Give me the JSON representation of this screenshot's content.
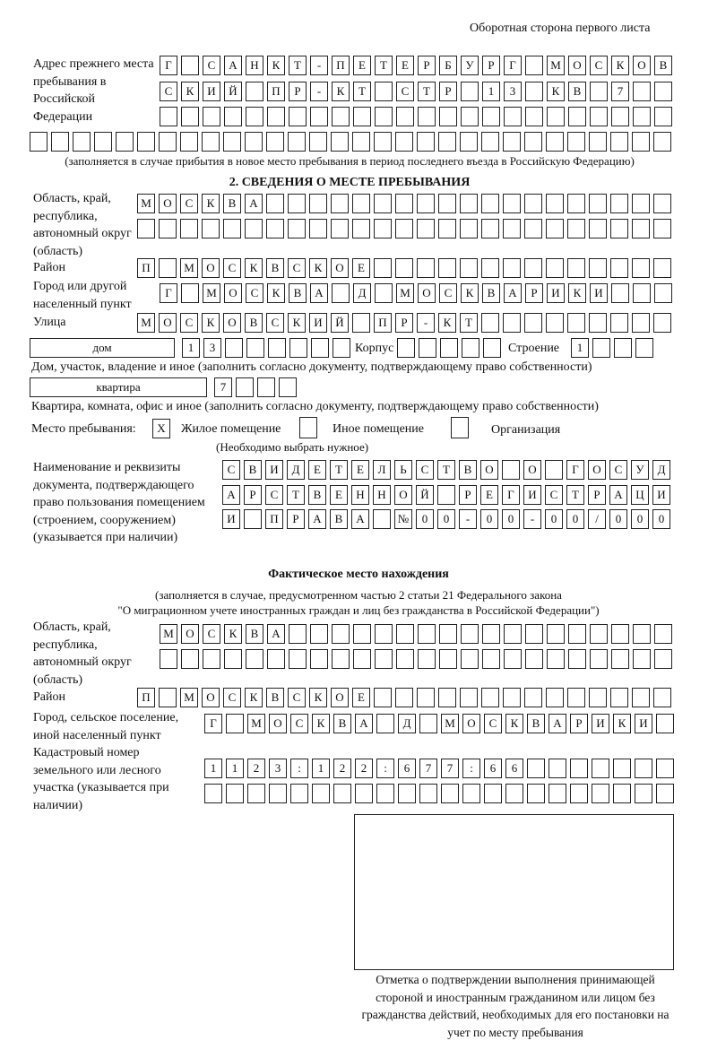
{
  "header": "Оборотная сторона первого листа",
  "prev_address": {
    "label": "Адрес прежнего места пребывания в Российской Федерации",
    "rows": [
      "Г СанКТ-ПЕТЕРБУРГ МОСКОВ",
      "СКИЙ ПР-КТ СТР 13 КВ 7  ",
      "",
      "",
      ""
    ],
    "note": "(заполняется в случае прибытия в новое место пребывания в период последнего въезда в Российскую Федерацию)"
  },
  "section2": {
    "title": "2. СВЕДЕНИЯ О МЕСТЕ ПРЕБЫВАНИЯ",
    "region_label": "Область, край, республика, автономный округ (область)",
    "region_rows": [
      "МОСКВА",
      ""
    ],
    "district_label": "Район",
    "district": "П МОСКВСКОЕ",
    "city_label": "Город или другой населенный пункт",
    "city": "Г МОСКВА Д МОСКВАРИКИ",
    "street_label": "Улица",
    "street": "МОСКОВСКИЙ ПР-КТ",
    "house_type": "дом",
    "house_number": "13",
    "korpus_label": "Корпус",
    "korpus": "",
    "building_label": "Строение",
    "building": "1",
    "house_note": "Дом, участок, владение и иное (заполнить согласно документу, подтверждающему право собственности)",
    "apt_type": "квартира",
    "apt_number": "7",
    "apt_note": "Квартира, комната, офис и иное (заполнить согласно документу, подтверждающему право собственности)",
    "place_label": "Место пребывания:",
    "place_options": [
      {
        "mark": "X",
        "label": "Жилое помещение"
      },
      {
        "mark": "",
        "label": "Иное помещение"
      },
      {
        "mark": "",
        "label": "Организация"
      }
    ],
    "place_note": "(Необходимо выбрать нужное)",
    "doc_label": "Наименование и реквизиты документа, подтверждающего право пользования помещением (строением, сооружением) (указывается при наличии)",
    "doc_rows": [
      "СВИДЕТЕЛЬСТВО О ГОСУД",
      "АРСТВЕННОЙ РЕГИСТРАЦИ",
      "И ПРАВА №00-00-00/000"
    ]
  },
  "actual": {
    "title": "Фактическое место нахождения",
    "note1": "(заполняется в случае, предусмотренном частью 2 статьи 21 Федерального закона",
    "note2": "\"О миграционном учете иностранных граждан и лиц без гражданства в Российской Федерации\")",
    "region_label": "Область, край, республика, автономный округ (область)",
    "region_rows": [
      "МОСКВА",
      ""
    ],
    "district_label": "Район",
    "district": "П МОСКВСКОЕ",
    "city_label": "Город, сельское поселение, иной населенный пункт",
    "city": "Г МОСКВА Д МОСКВАРИКИ",
    "cadastre_label": "Кадастровый номер земельного или лесного участка (указывается при наличии)",
    "cadastre_rows": [
      "1123:122:677:66",
      ""
    ]
  },
  "stamp_caption": "Отметка о подтверждении выполнения принимающей стороной и иностранным гражданином или лицом без гражданства действий, необходимых для его постановки на учет по месту пребывания"
}
